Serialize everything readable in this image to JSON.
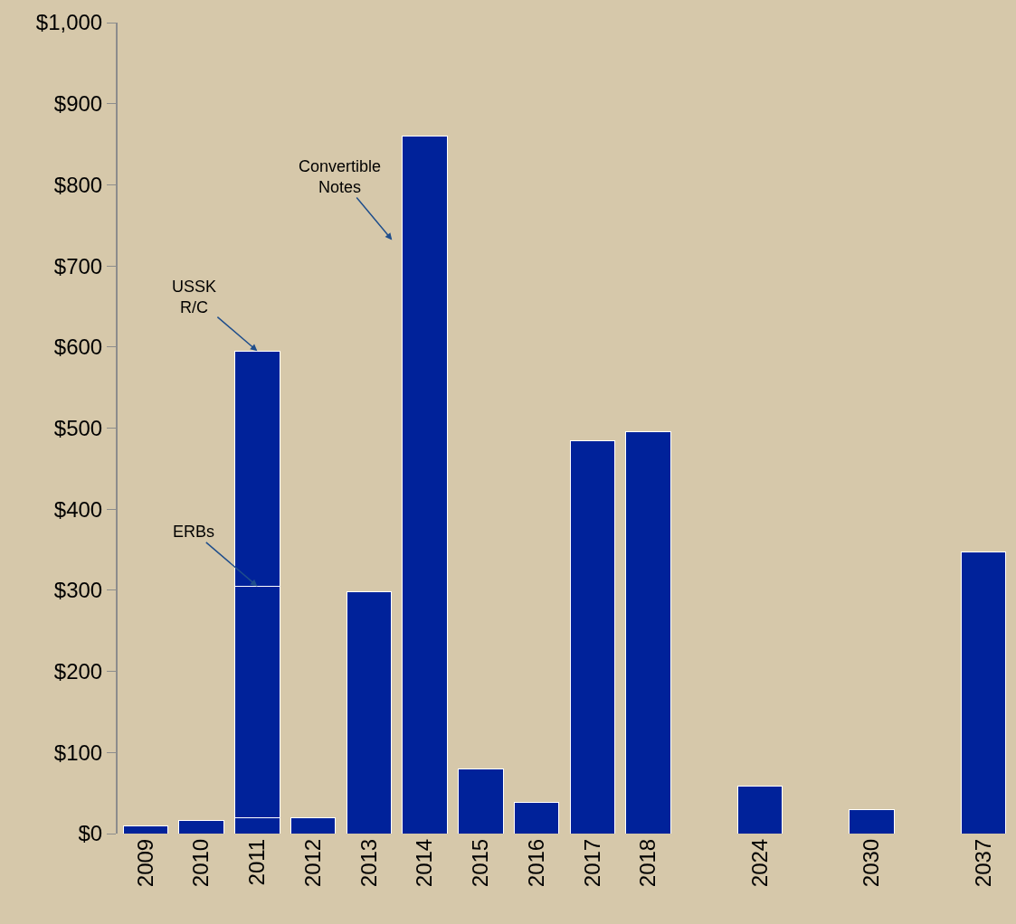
{
  "chart_data": {
    "type": "bar",
    "stacked": true,
    "categories": [
      "2009",
      "2010",
      "2011",
      "2012",
      "2013",
      "2014",
      "2015",
      "2016",
      "2017",
      "2018",
      null,
      "2024",
      null,
      "2030",
      null,
      "2037"
    ],
    "series": [
      {
        "color": "#00229a",
        "values": [
          10,
          16,
          20,
          19,
          298,
          860,
          80,
          39,
          484,
          496,
          null,
          59,
          null,
          30,
          null,
          347
        ]
      },
      {
        "color": "#00229a",
        "values": [
          null,
          null,
          285,
          null,
          null,
          null,
          null,
          null,
          null,
          null,
          null,
          null,
          null,
          null,
          null,
          null
        ]
      },
      {
        "color": "#00229a",
        "values": [
          null,
          null,
          290,
          null,
          null,
          null,
          null,
          null,
          null,
          null,
          null,
          null,
          null,
          null,
          null,
          null
        ]
      }
    ],
    "ylim": [
      0,
      1000
    ],
    "yticks": [
      {
        "value": 0,
        "label": "$0"
      },
      {
        "value": 100,
        "label": "$100"
      },
      {
        "value": 200,
        "label": "$200"
      },
      {
        "value": 300,
        "label": "$300"
      },
      {
        "value": 400,
        "label": "$400"
      },
      {
        "value": 500,
        "label": "$500"
      },
      {
        "value": 600,
        "label": "$600"
      },
      {
        "value": 700,
        "label": "$700"
      },
      {
        "value": 800,
        "label": "$800"
      },
      {
        "value": 900,
        "label": "$900"
      },
      {
        "value": 1000,
        "label": "$1,000"
      }
    ],
    "annotations": [
      "Convertible\nNotes",
      {
        "text": "USSK\nR/C",
        "x": "2011",
        "y": 595
      },
      {
        "text": "ERBs",
        "x": "2011",
        "y": 305
      }
    ],
    "grid": false
  }
}
